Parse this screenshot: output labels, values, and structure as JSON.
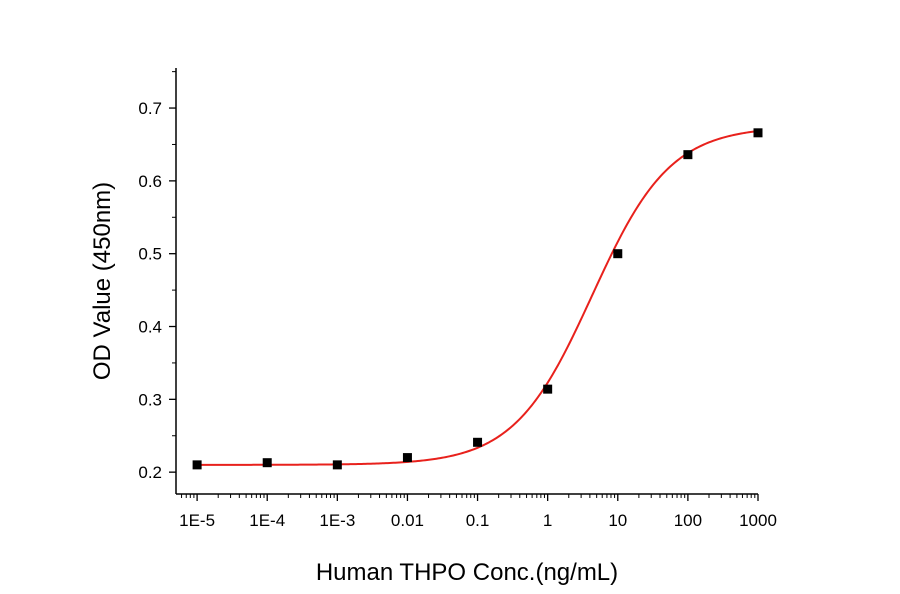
{
  "chart_data": {
    "type": "scatter",
    "title": "",
    "xlabel": "Human THPO Conc.(ng/mL)",
    "ylabel": "OD Value (450nm)",
    "x_scale": "log",
    "xlim": [
      5e-06,
      1000
    ],
    "ylim": [
      0.17,
      0.755
    ],
    "x_ticks": [
      1e-05,
      0.0001,
      0.001,
      0.01,
      0.1,
      1,
      10,
      100,
      1000
    ],
    "x_tick_labels": [
      "1E-5",
      "1E-4",
      "1E-3",
      "0.01",
      "0.1",
      "1",
      "10",
      "100",
      "1000"
    ],
    "y_ticks": [
      0.2,
      0.3,
      0.4,
      0.5,
      0.6,
      0.7
    ],
    "y_tick_labels": [
      "0.2",
      "0.3",
      "0.4",
      "0.5",
      "0.6",
      "0.7"
    ],
    "grid": false,
    "legend": "none",
    "series": [
      {
        "marker": "square",
        "color": "#000000",
        "x": [
          1e-05,
          0.0001,
          0.001,
          0.01,
          0.1,
          1,
          10,
          100,
          1000
        ],
        "y": [
          0.21,
          0.213,
          0.21,
          0.22,
          0.241,
          0.314,
          0.5,
          0.636,
          0.666
        ]
      }
    ],
    "fit_curve": {
      "type": "4PL",
      "color": "#e8211c",
      "bottom": 0.21,
      "top": 0.675,
      "ec50": 4.3,
      "hill": 0.78,
      "x_range": [
        1e-05,
        1000
      ]
    }
  }
}
